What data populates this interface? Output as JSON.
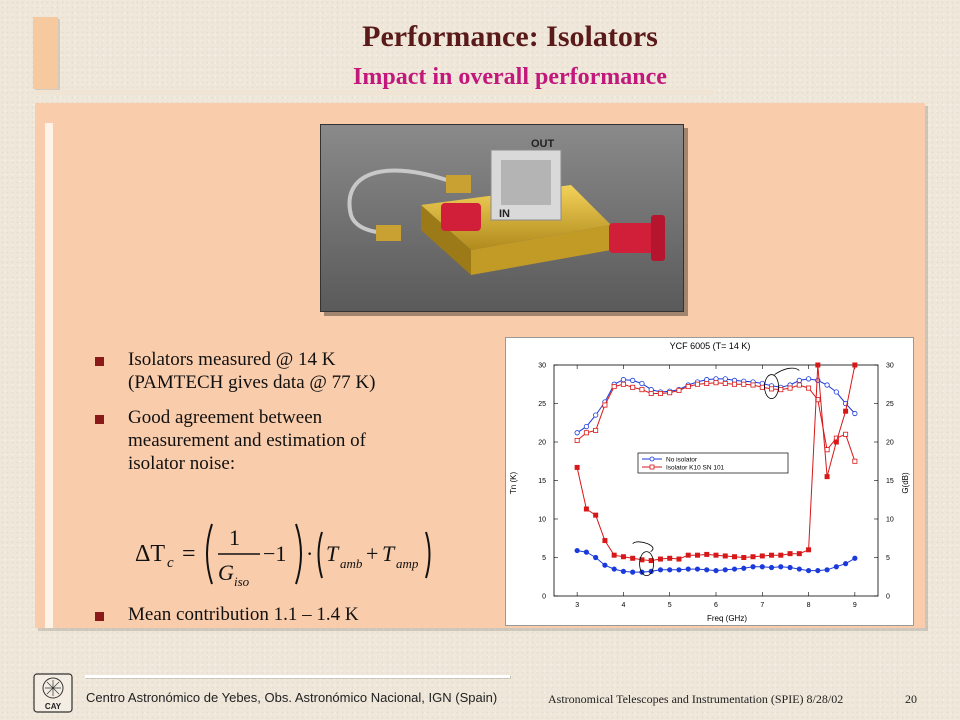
{
  "slide": {
    "title": "Performance: Isolators",
    "subtitle": "Impact in overall performance",
    "bullets": [
      {
        "lines": [
          "Isolators measured @ 14 K",
          "(PAMTECH gives data @ 77 K)"
        ]
      },
      {
        "lines": [
          "Good agreement between",
          "measurement and estimation of",
          "isolator noise:"
        ]
      }
    ],
    "mean_bullet": "Mean contribution 1.1 – 1.4 K",
    "formula": {
      "lhs": "ΔT",
      "lhs_sub": "c",
      "eq": "=",
      "num": "1",
      "den": "G",
      "den_sub": "iso",
      "minus_one": "−1",
      "dot": "·",
      "t1": "T",
      "t1_sub": "amb",
      "plus": "+",
      "t2": "T",
      "t2_sub": "amp"
    },
    "photo": {
      "label_in": "IN",
      "label_out": "OUT"
    },
    "footer": {
      "left": "Centro Astronómico de Yebes, Obs. Astronómico Nacional, IGN (Spain)",
      "right": "Astronomical Telescopes and Instrumentation (SPIE)  8/28/02",
      "page": "20",
      "logo_text": "CAY"
    },
    "colors": {
      "title": "#5a1a1a",
      "subtitle": "#c2187c",
      "panel": "#f9ccab",
      "bullet": "#8a1a1a"
    }
  },
  "chart_data": {
    "type": "line",
    "title": "YCF 6005 (T= 14 K)",
    "xlabel": "Freq (GHz)",
    "ylabel": "Tn (K)",
    "y2label": "G(dB)",
    "xlim": [
      2.5,
      9.5
    ],
    "ylim": [
      0,
      30
    ],
    "y2lim": [
      0,
      30
    ],
    "xticks": [
      3,
      4,
      5,
      6,
      7,
      8,
      9
    ],
    "yticks": [
      0,
      5,
      10,
      15,
      20,
      25,
      30
    ],
    "grid": false,
    "legend_position": "center",
    "series": [
      {
        "name": "No isolator",
        "quantity": "gain",
        "axis": "right",
        "marker": "open-circle",
        "color": "#1a3adb",
        "x": [
          3.0,
          3.2,
          3.4,
          3.6,
          3.8,
          4.0,
          4.2,
          4.4,
          4.6,
          4.8,
          5.0,
          5.2,
          5.4,
          5.6,
          5.8,
          6.0,
          6.2,
          6.4,
          6.6,
          6.8,
          7.0,
          7.2,
          7.4,
          7.6,
          7.8,
          8.0,
          8.2,
          8.4,
          8.6,
          8.8,
          9.0
        ],
        "y": [
          21.2,
          22.0,
          23.5,
          25.2,
          27.5,
          28.1,
          28.0,
          27.6,
          26.8,
          26.5,
          26.6,
          26.8,
          27.4,
          27.8,
          28.1,
          28.2,
          28.2,
          28.0,
          27.9,
          27.8,
          27.6,
          27.3,
          27.1,
          27.4,
          28.0,
          28.2,
          28.0,
          27.4,
          26.5,
          25.0,
          23.7
        ]
      },
      {
        "name": "Isolator K10 SN 101",
        "quantity": "gain",
        "axis": "right",
        "marker": "open-square",
        "color": "#d81818",
        "x": [
          3.0,
          3.2,
          3.4,
          3.6,
          3.8,
          4.0,
          4.2,
          4.4,
          4.6,
          4.8,
          5.0,
          5.2,
          5.4,
          5.6,
          5.8,
          6.0,
          6.2,
          6.4,
          6.6,
          6.8,
          7.0,
          7.2,
          7.4,
          7.6,
          7.8,
          8.0,
          8.2,
          8.4,
          8.6,
          8.8,
          9.0
        ],
        "y": [
          20.2,
          21.2,
          21.5,
          24.8,
          27.2,
          27.5,
          27.1,
          26.8,
          26.3,
          26.3,
          26.4,
          26.7,
          27.2,
          27.5,
          27.6,
          27.7,
          27.6,
          27.5,
          27.5,
          27.4,
          27.1,
          26.9,
          26.8,
          27.0,
          27.4,
          27.0,
          25.5,
          19.0,
          20.5,
          21.0,
          17.5
        ]
      },
      {
        "name": "No isolator",
        "quantity": "noise",
        "axis": "left",
        "marker": "filled-circle",
        "color": "#1a3adb",
        "x": [
          3.0,
          3.2,
          3.4,
          3.6,
          3.8,
          4.0,
          4.2,
          4.4,
          4.6,
          4.8,
          5.0,
          5.2,
          5.4,
          5.6,
          5.8,
          6.0,
          6.2,
          6.4,
          6.6,
          6.8,
          7.0,
          7.2,
          7.4,
          7.6,
          7.8,
          8.0,
          8.2,
          8.4,
          8.6,
          8.8,
          9.0
        ],
        "y": [
          5.9,
          5.7,
          5.0,
          4.0,
          3.5,
          3.2,
          3.1,
          3.1,
          3.2,
          3.4,
          3.4,
          3.4,
          3.5,
          3.5,
          3.4,
          3.3,
          3.4,
          3.5,
          3.6,
          3.8,
          3.8,
          3.7,
          3.8,
          3.7,
          3.5,
          3.3,
          3.3,
          3.4,
          3.8,
          4.2,
          4.9
        ]
      },
      {
        "name": "Isolator K10 SN 101",
        "quantity": "noise",
        "axis": "left",
        "marker": "filled-square",
        "color": "#d81818",
        "x": [
          3.0,
          3.2,
          3.4,
          3.6,
          3.8,
          4.0,
          4.2,
          4.4,
          4.6,
          4.8,
          5.0,
          5.2,
          5.4,
          5.6,
          5.8,
          6.0,
          6.2,
          6.4,
          6.6,
          6.8,
          7.0,
          7.2,
          7.4,
          7.6,
          7.8,
          8.0,
          8.2,
          8.4,
          8.6,
          8.8,
          9.0
        ],
        "y": [
          16.7,
          11.3,
          10.5,
          7.2,
          5.3,
          5.1,
          4.9,
          4.7,
          4.6,
          4.8,
          4.9,
          4.8,
          5.3,
          5.3,
          5.4,
          5.3,
          5.2,
          5.1,
          5.0,
          5.1,
          5.2,
          5.3,
          5.3,
          5.5,
          5.5,
          6.0,
          30.0,
          15.5,
          20.0,
          24.0,
          30.0
        ]
      }
    ]
  }
}
